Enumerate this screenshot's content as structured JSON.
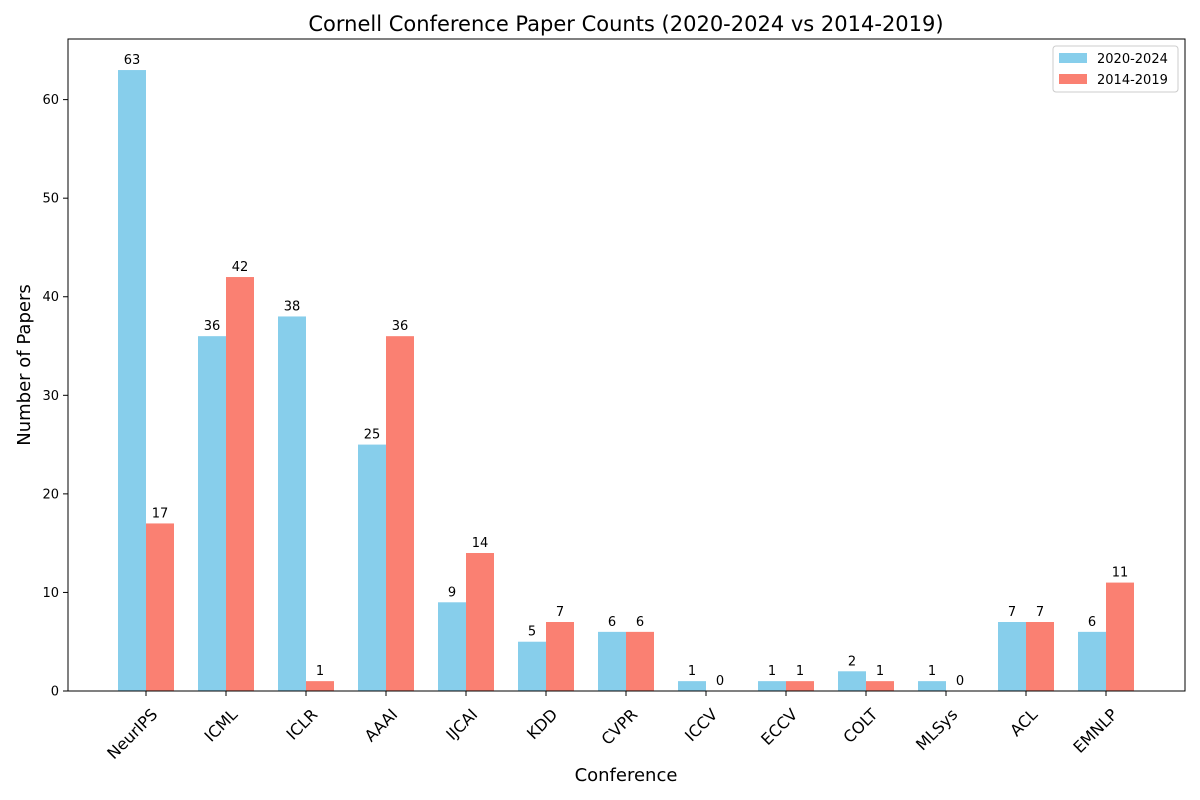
{
  "colors": {
    "series_0": "#87CEEB",
    "series_1": "#FA8072",
    "axis": "#000000",
    "legend_border": "#CCCCCC"
  },
  "chart_data": {
    "type": "bar",
    "title": "Cornell Conference Paper Counts (2020-2024 vs 2014-2019)",
    "xlabel": "Conference",
    "ylabel": "Number of Papers",
    "ylim": [
      0,
      66.15
    ],
    "yticks": [
      0,
      10,
      20,
      30,
      40,
      50,
      60
    ],
    "grid": false,
    "legend_position": "top-right",
    "categories": [
      "NeurIPS",
      "ICML",
      "ICLR",
      "AAAI",
      "IJCAI",
      "KDD",
      "CVPR",
      "ICCV",
      "ECCV",
      "COLT",
      "MLSys",
      "ACL",
      "EMNLP"
    ],
    "series": [
      {
        "name": "2020-2024",
        "values": [
          63,
          36,
          38,
          25,
          9,
          5,
          6,
          1,
          1,
          2,
          1,
          7,
          6
        ]
      },
      {
        "name": "2014-2019",
        "values": [
          17,
          42,
          1,
          36,
          14,
          7,
          6,
          0,
          1,
          1,
          0,
          7,
          11
        ]
      }
    ]
  }
}
